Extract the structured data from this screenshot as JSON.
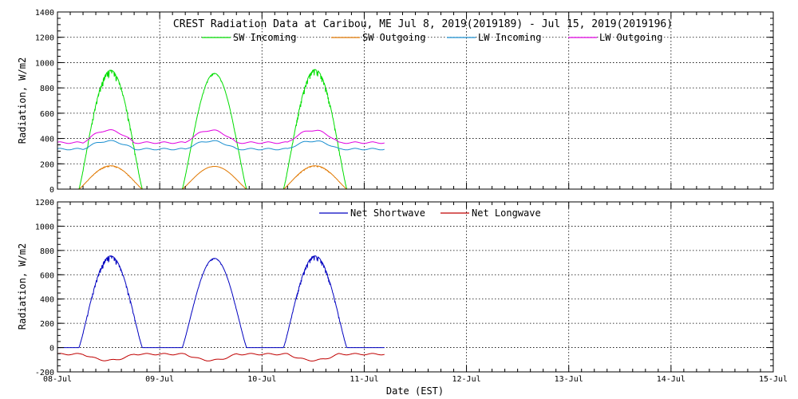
{
  "chart_data": {
    "title": "CREST Radiation Data at Caribou, ME   Jul  8, 2019(2019189) - Jul 15, 2019(2019196)",
    "xlabel": "Date (EST)",
    "x_tick_labels": [
      "08-Jul",
      "09-Jul",
      "10-Jul",
      "11-Jul",
      "12-Jul",
      "13-Jul",
      "14-Jul",
      "15-Jul"
    ],
    "x_domain_days": [
      8,
      15
    ],
    "data_end_day": 11.2,
    "panels": [
      {
        "type": "line",
        "ylabel": "Radiation, W/m2",
        "ylim": [
          0,
          1400
        ],
        "yticks": [
          0,
          200,
          400,
          600,
          800,
          1000,
          1200,
          1400
        ],
        "grid": true,
        "legend_placement": "top",
        "series": [
          {
            "name": "SW Incoming",
            "color": "#00dd00",
            "days": [
              {
                "peak": 940,
                "rise": 8.21,
                "set": 8.83,
                "noise": 230,
                "seed": 11
              },
              {
                "peak": 915,
                "rise": 9.22,
                "set": 9.85,
                "noise": 50,
                "seed": 23
              },
              {
                "peak": 945,
                "rise": 10.21,
                "set": 10.83,
                "noise": 210,
                "seed": 37
              }
            ]
          },
          {
            "name": "SW Outgoing",
            "color": "#e07800",
            "days": [
              {
                "peak": 185,
                "rise": 8.21,
                "set": 8.83,
                "noise": 35,
                "seed": 11
              },
              {
                "peak": 180,
                "rise": 9.22,
                "set": 9.85,
                "noise": 8,
                "seed": 23
              },
              {
                "peak": 185,
                "rise": 10.21,
                "set": 10.83,
                "noise": 30,
                "seed": 37
              }
            ]
          },
          {
            "name": "LW Incoming",
            "color": "#1a8fd0",
            "base": 305,
            "amp": 75
          },
          {
            "name": "LW Outgoing",
            "color": "#e000e0",
            "base": 350,
            "amp": 115
          }
        ]
      },
      {
        "type": "line",
        "ylabel": "Radiation, W/m2",
        "ylim": [
          -200,
          1200
        ],
        "yticks": [
          -200,
          0,
          200,
          400,
          600,
          800,
          1000,
          1200
        ],
        "grid": true,
        "legend_placement": "top",
        "series": [
          {
            "name": "Net Shortwave",
            "color": "#0000c0",
            "days": [
              {
                "peak": 755,
                "rise": 8.21,
                "set": 8.83,
                "noise": 190,
                "seed": 11
              },
              {
                "peak": 735,
                "rise": 9.22,
                "set": 9.85,
                "noise": 40,
                "seed": 23
              },
              {
                "peak": 755,
                "rise": 10.21,
                "set": 10.83,
                "noise": 170,
                "seed": 37
              }
            ]
          },
          {
            "name": "Net Longwave",
            "color": "#c00000",
            "base": -45,
            "amp": -60
          }
        ]
      }
    ]
  }
}
